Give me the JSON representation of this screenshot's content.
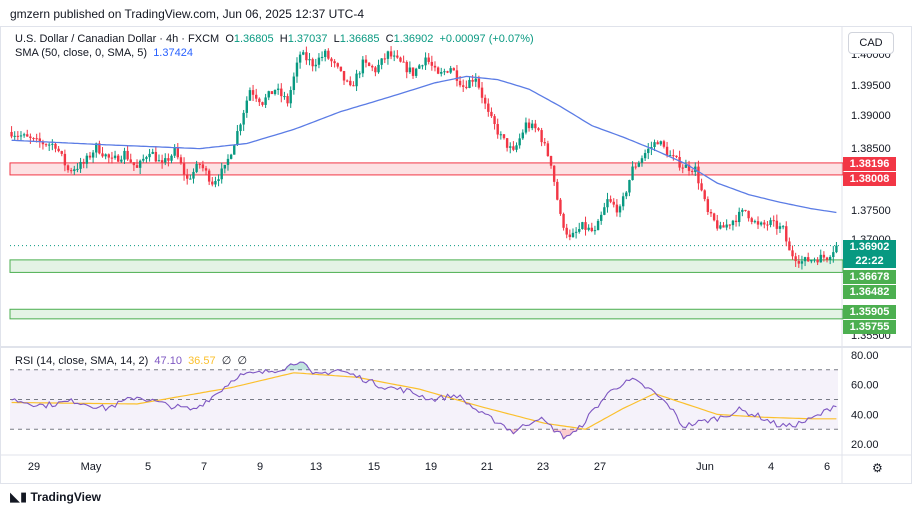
{
  "header": {
    "publisher_line": "gmzern published on TradingView.com, Jun 06, 2025 12:37 UTC-4"
  },
  "legend": {
    "symbol": "U.S. Dollar / Canadian Dollar · 4h · FXCM",
    "o_label": "O",
    "o": "1.36805",
    "h_label": "H",
    "h": "1.37037",
    "l_label": "L",
    "l": "1.36685",
    "c_label": "C",
    "c": "1.36902",
    "change": "+0.00097 (+0.07%)",
    "sma_label": "SMA (50, close, 0, SMA, 5)",
    "sma_value": "1.37424"
  },
  "currency_button": "CAD",
  "rsi_legend": {
    "label": "RSI (14, close, SMA, 14, 2)",
    "rsi_value": "47.10",
    "sma_value": "36.57",
    "n1": "∅",
    "n2": "∅"
  },
  "price_tags": [
    {
      "value": "1.38196",
      "color": "#f23645"
    },
    {
      "value": "1.38008",
      "color": "#f23645"
    },
    {
      "value": "1.36902",
      "color": "#089981"
    },
    {
      "value": "22:22",
      "color": "#089981"
    },
    {
      "value": "1.36678",
      "color": "#4caf50"
    },
    {
      "value": "1.36482",
      "color": "#4caf50"
    },
    {
      "value": "1.35905",
      "color": "#4caf50"
    },
    {
      "value": "1.35755",
      "color": "#4caf50"
    }
  ],
  "branding": "TradingView",
  "colors": {
    "up": "#089981",
    "down": "#f23645",
    "sma": "#5b7ce5",
    "rsi": "#7e57c2",
    "rsi_ma": "#fbc02d",
    "resistance_zone": "#f23645",
    "support_zone": "#4caf50"
  },
  "chart_data": [
    {
      "type": "candlestick",
      "title": "U.S. Dollar / Canadian Dollar · 4h · FXCM",
      "x_tick_labels": [
        "29",
        "May",
        "5",
        "7",
        "9",
        "13",
        "15",
        "19",
        "21",
        "23",
        "27",
        "Jun",
        "4",
        "6"
      ],
      "y_tick_labels": [
        "1.40000",
        "1.39500",
        "1.39000",
        "1.38500",
        "1.37500",
        "1.37000",
        "1.35500"
      ],
      "y_range": [
        1.3533,
        1.4012
      ],
      "resistance_zone": [
        1.38008,
        1.38196
      ],
      "support_zones": [
        [
          1.36482,
          1.36678
        ],
        [
          1.35755,
          1.35905
        ]
      ],
      "last_close": 1.36902,
      "close_path_knots": [
        [
          0,
          1.3868
        ],
        [
          8,
          1.3852
        ],
        [
          14,
          1.3848
        ],
        [
          18,
          1.3808
        ],
        [
          23,
          1.3818
        ],
        [
          27,
          1.3845
        ],
        [
          32,
          1.3822
        ],
        [
          36,
          1.3835
        ],
        [
          40,
          1.381
        ],
        [
          44,
          1.384
        ],
        [
          48,
          1.3815
        ],
        [
          52,
          1.3838
        ],
        [
          56,
          1.3793
        ],
        [
          60,
          1.3818
        ],
        [
          64,
          1.379
        ],
        [
          68,
          1.381
        ],
        [
          72,
          1.3868
        ],
        [
          76,
          1.3935
        ],
        [
          80,
          1.3915
        ],
        [
          84,
          1.3935
        ],
        [
          88,
          1.3915
        ],
        [
          92,
          1.399
        ],
        [
          96,
          1.3975
        ],
        [
          100,
          1.399
        ],
        [
          104,
          1.3965
        ],
        [
          108,
          1.3935
        ],
        [
          112,
          1.3975
        ],
        [
          116,
          1.3965
        ],
        [
          120,
          1.399
        ],
        [
          124,
          1.3975
        ],
        [
          128,
          1.396
        ],
        [
          132,
          1.3985
        ],
        [
          136,
          1.3955
        ],
        [
          140,
          1.397
        ],
        [
          144,
          1.394
        ],
        [
          148,
          1.3955
        ],
        [
          152,
          1.3895
        ],
        [
          156,
          1.386
        ],
        [
          160,
          1.3835
        ],
        [
          164,
          1.388
        ],
        [
          168,
          1.387
        ],
        [
          172,
          1.382
        ],
        [
          175,
          1.3735
        ],
        [
          178,
          1.37
        ],
        [
          182,
          1.372
        ],
        [
          186,
          1.371
        ],
        [
          190,
          1.376
        ],
        [
          194,
          1.3745
        ],
        [
          198,
          1.381
        ],
        [
          202,
          1.3835
        ],
        [
          206,
          1.3855
        ],
        [
          210,
          1.383
        ],
        [
          214,
          1.3815
        ],
        [
          218,
          1.381
        ],
        [
          222,
          1.374
        ],
        [
          226,
          1.3715
        ],
        [
          230,
          1.373
        ],
        [
          234,
          1.3745
        ],
        [
          238,
          1.372
        ],
        [
          242,
          1.3725
        ],
        [
          246,
          1.3715
        ],
        [
          248,
          1.368
        ],
        [
          252,
          1.3665
        ],
        [
          256,
          1.367
        ],
        [
          260,
          1.3673
        ],
        [
          263,
          1.369
        ]
      ],
      "sma_50_knots": [
        [
          0,
          1.3855
        ],
        [
          30,
          1.3848
        ],
        [
          60,
          1.3842
        ],
        [
          75,
          1.385
        ],
        [
          90,
          1.3872
        ],
        [
          105,
          1.39
        ],
        [
          120,
          1.3922
        ],
        [
          135,
          1.3945
        ],
        [
          145,
          1.3955
        ],
        [
          155,
          1.395
        ],
        [
          165,
          1.3935
        ],
        [
          175,
          1.3908
        ],
        [
          185,
          1.3878
        ],
        [
          195,
          1.386
        ],
        [
          205,
          1.384
        ],
        [
          215,
          1.3818
        ],
        [
          225,
          1.3788
        ],
        [
          235,
          1.377
        ],
        [
          245,
          1.3758
        ],
        [
          255,
          1.3748
        ],
        [
          263,
          1.3742
        ]
      ]
    },
    {
      "type": "line",
      "title": "RSI (14, close, SMA, 14, 2)",
      "y_tick_labels": [
        "80.00",
        "60.00",
        "40.00",
        "20.00"
      ],
      "y_range": [
        14,
        84
      ],
      "bands": [
        30,
        50,
        70
      ],
      "rsi_knots": [
        [
          0,
          50
        ],
        [
          10,
          46
        ],
        [
          20,
          49
        ],
        [
          30,
          44
        ],
        [
          40,
          52
        ],
        [
          50,
          46
        ],
        [
          58,
          43
        ],
        [
          66,
          55
        ],
        [
          72,
          66
        ],
        [
          80,
          68
        ],
        [
          88,
          72
        ],
        [
          92,
          77
        ],
        [
          96,
          66
        ],
        [
          104,
          70
        ],
        [
          112,
          64
        ],
        [
          118,
          59
        ],
        [
          126,
          56
        ],
        [
          134,
          50
        ],
        [
          142,
          53
        ],
        [
          150,
          40
        ],
        [
          156,
          34
        ],
        [
          160,
          28
        ],
        [
          168,
          38
        ],
        [
          176,
          25
        ],
        [
          180,
          28
        ],
        [
          186,
          44
        ],
        [
          192,
          58
        ],
        [
          198,
          63
        ],
        [
          204,
          56
        ],
        [
          210,
          45
        ],
        [
          214,
          32
        ],
        [
          220,
          35
        ],
        [
          226,
          38
        ],
        [
          232,
          43
        ],
        [
          238,
          39
        ],
        [
          244,
          33
        ],
        [
          248,
          32
        ],
        [
          254,
          36
        ],
        [
          258,
          40
        ],
        [
          263,
          47
        ]
      ],
      "rsi_ma_knots": [
        [
          0,
          48
        ],
        [
          40,
          47
        ],
        [
          70,
          58
        ],
        [
          90,
          68
        ],
        [
          110,
          65
        ],
        [
          130,
          57
        ],
        [
          150,
          45
        ],
        [
          170,
          34
        ],
        [
          183,
          30
        ],
        [
          195,
          44
        ],
        [
          205,
          54
        ],
        [
          215,
          47
        ],
        [
          225,
          40
        ],
        [
          240,
          38
        ],
        [
          255,
          37
        ],
        [
          263,
          37
        ]
      ]
    }
  ]
}
